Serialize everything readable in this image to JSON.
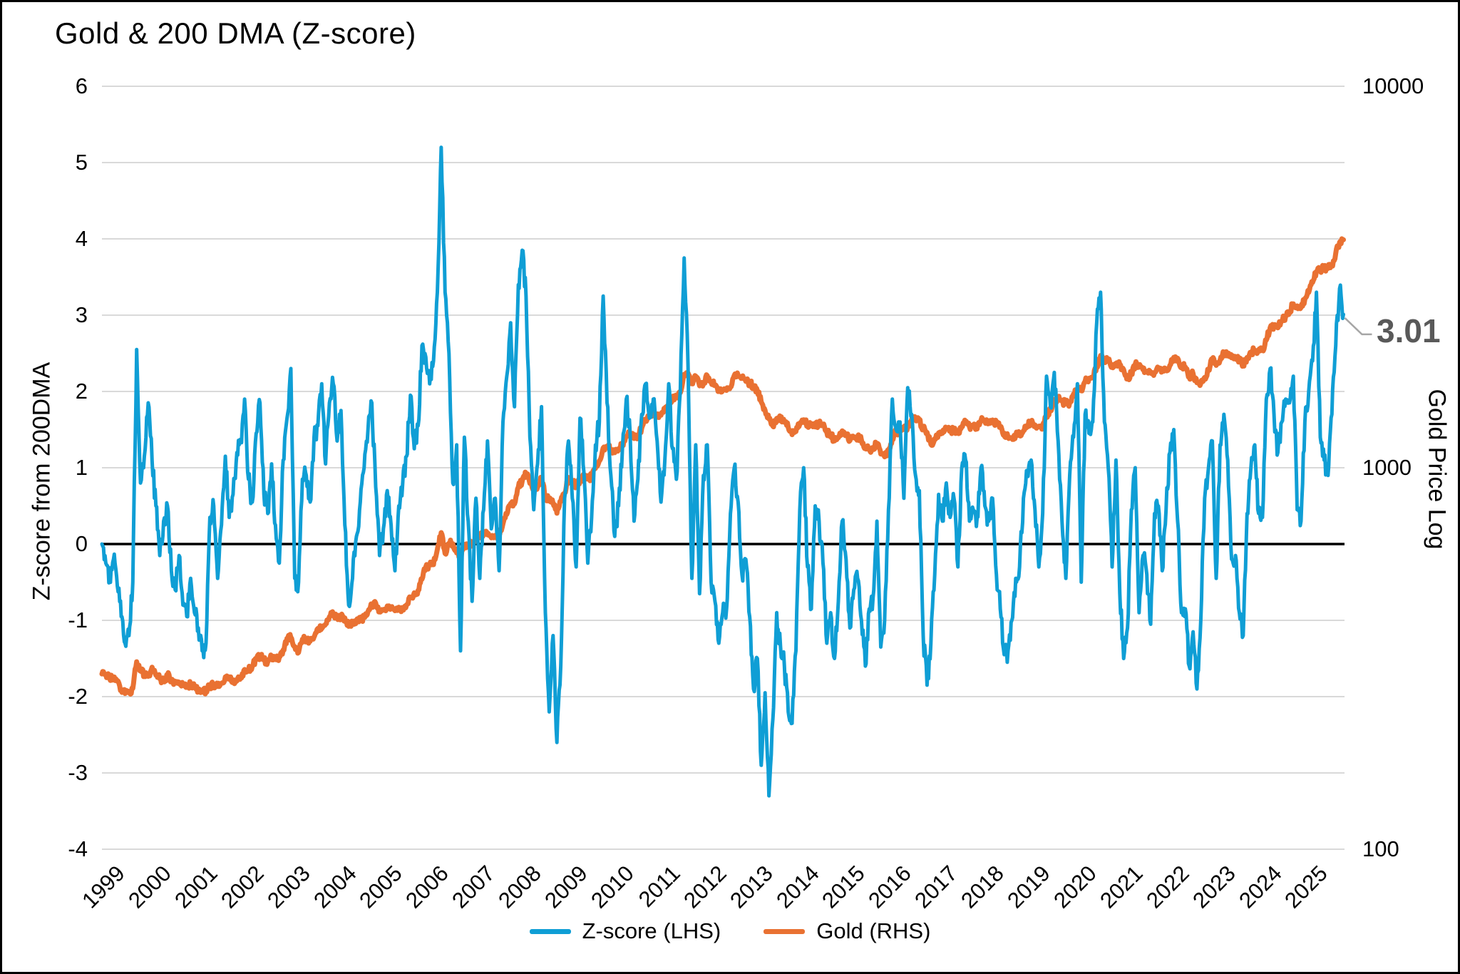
{
  "title": "Gold & 200 DMA (Z-score)",
  "left_axis": {
    "title": "Z-score from 200DMA",
    "ticks": [
      6,
      5,
      4,
      3,
      2,
      1,
      0,
      -1,
      -2,
      -3,
      -4
    ],
    "min": -4,
    "max": 6
  },
  "right_axis": {
    "title": "Gold Price Log",
    "ticks": [
      10000,
      1000,
      100
    ],
    "min": 100,
    "max": 10000,
    "scale": "log"
  },
  "x_axis": {
    "ticks": [
      1999,
      2000,
      2001,
      2002,
      2003,
      2004,
      2005,
      2006,
      2007,
      2008,
      2009,
      2010,
      2011,
      2012,
      2013,
      2014,
      2015,
      2016,
      2017,
      2018,
      2019,
      2020,
      2021,
      2022,
      2023,
      2024,
      2025
    ]
  },
  "annotation": {
    "label": "3.01",
    "value": 3.01,
    "color": "#595959"
  },
  "legend": [
    {
      "label": "Z-score (LHS)",
      "color": "#0F9ED5"
    },
    {
      "label": "Gold (RHS)",
      "color": "#E97132"
    }
  ],
  "colors": {
    "zscore_line": "#0F9ED5",
    "gold_line": "#E97132",
    "gridline": "#D9D9D9",
    "zero_line": "#000000",
    "leader_line": "#A6A6A6"
  },
  "chart_data": {
    "type": "line",
    "title": "Gold & 200 DMA (Z-score)",
    "xlabel": "",
    "ylabel": "Z-score from 200DMA",
    "y2label": "Gold Price Log",
    "ylim": [
      -4,
      6
    ],
    "y2lim": [
      100,
      10000
    ],
    "y2scale": "log",
    "grid": true,
    "legend_position": "bottom",
    "x_start_year": 1999,
    "x_end": "2025-11",
    "frequency": "monthly",
    "series": [
      {
        "name": "Z-score (LHS)",
        "axis": "left",
        "color": "#0F9ED5",
        "values": [
          0.0,
          -0.25,
          -0.45,
          -0.2,
          -0.55,
          -0.95,
          -1.3,
          -1.2,
          -0.5,
          2.55,
          0.8,
          1.15,
          1.85,
          1.1,
          0.5,
          -0.15,
          0.3,
          0.5,
          -0.35,
          -0.6,
          -0.15,
          -0.8,
          -0.95,
          -0.45,
          -0.9,
          -1.1,
          -1.4,
          -1.3,
          0.35,
          0.5,
          -0.45,
          0.25,
          1.15,
          0.35,
          0.65,
          1.2,
          1.35,
          1.9,
          0.85,
          0.55,
          1.45,
          1.85,
          0.65,
          0.4,
          1.05,
          0.25,
          -0.25,
          1.1,
          1.65,
          2.3,
          -0.45,
          -0.5,
          0.85,
          0.9,
          0.55,
          1.4,
          1.55,
          2.1,
          1.05,
          1.85,
          2.1,
          1.35,
          1.75,
          0.25,
          -0.8,
          -0.45,
          0.1,
          0.55,
          1.0,
          1.5,
          1.85,
          0.75,
          -0.15,
          0.2,
          0.7,
          0.25,
          -0.35,
          0.5,
          0.8,
          1.15,
          1.95,
          1.25,
          1.55,
          2.6,
          2.45,
          2.1,
          2.4,
          3.3,
          5.2,
          3.3,
          2.5,
          0.8,
          1.3,
          -1.4,
          1.4,
          0.3,
          -0.75,
          0.6,
          -0.45,
          0.45,
          1.35,
          0.2,
          0.6,
          -0.35,
          1.6,
          2.2,
          2.9,
          1.8,
          3.4,
          3.85,
          3.25,
          1.4,
          0.45,
          1.05,
          1.8,
          -0.9,
          -2.2,
          -1.2,
          -2.6,
          -1.6,
          0.6,
          1.35,
          0.6,
          -0.3,
          1.65,
          0.95,
          -0.25,
          0.35,
          1.3,
          1.6,
          3.25,
          1.85,
          0.9,
          0.1,
          0.5,
          1.25,
          1.9,
          1.45,
          0.3,
          0.85,
          1.7,
          2.1,
          1.65,
          1.9,
          1.35,
          0.55,
          1.1,
          2.1,
          1.25,
          0.85,
          2.0,
          3.75,
          2.35,
          -0.45,
          1.3,
          -0.65,
          0.9,
          1.3,
          -0.5,
          -0.75,
          -1.3,
          -0.9,
          -0.85,
          0.4,
          1.0,
          0.55,
          -0.4,
          -0.2,
          -0.95,
          -1.9,
          -1.5,
          -2.9,
          -1.95,
          -3.3,
          -2.3,
          -0.9,
          -1.35,
          -1.6,
          -2.2,
          -2.35,
          -1.4,
          0.45,
          1.0,
          -0.3,
          -0.85,
          0.5,
          0.3,
          -0.25,
          -1.3,
          -0.9,
          -1.5,
          -0.75,
          0.3,
          -0.2,
          -1.1,
          -0.6,
          -0.45,
          -1.0,
          -1.6,
          -0.85,
          -0.7,
          0.3,
          -1.35,
          -1.0,
          0.45,
          1.9,
          1.5,
          1.6,
          0.6,
          2.05,
          1.7,
          0.9,
          0.7,
          -1.2,
          -1.85,
          -1.3,
          -0.4,
          0.65,
          0.3,
          0.8,
          0.35,
          0.6,
          -0.3,
          1.0,
          1.1,
          0.3,
          0.45,
          0.35,
          1.0,
          0.5,
          0.3,
          0.6,
          -0.4,
          -0.85,
          -1.45,
          -1.4,
          -1.0,
          -0.45,
          -0.3,
          0.6,
          0.9,
          1.1,
          0.45,
          -0.3,
          0.4,
          2.2,
          1.8,
          2.25,
          1.35,
          0.3,
          -0.45,
          0.9,
          1.4,
          2.1,
          -0.5,
          1.7,
          1.45,
          1.6,
          2.9,
          3.3,
          1.6,
          1.0,
          -0.3,
          1.1,
          -0.65,
          -1.5,
          -1.1,
          0.45,
          1.0,
          -0.9,
          -0.15,
          -0.4,
          -1.05,
          0.4,
          0.5,
          -0.35,
          0.45,
          1.2,
          1.5,
          0.3,
          -0.9,
          -0.85,
          -1.6,
          -1.15,
          -1.9,
          -1.0,
          0.6,
          1.0,
          1.35,
          -0.45,
          1.3,
          1.7,
          1.1,
          -0.2,
          -0.15,
          -0.9,
          -1.2,
          0.4,
          1.0,
          1.3,
          0.4,
          0.35,
          1.9,
          2.3,
          1.7,
          1.2,
          1.6,
          1.9,
          1.85,
          2.2,
          0.45,
          0.3,
          1.6,
          2.0,
          2.4,
          3.3,
          1.4,
          1.1,
          0.9,
          1.7,
          2.6,
          3.35,
          3.01
        ]
      },
      {
        "name": "Gold (RHS)",
        "axis": "right",
        "color": "#E97132",
        "values": [
          288,
          287,
          280,
          283,
          277,
          262,
          256,
          257,
          264,
          310,
          293,
          288,
          284,
          300,
          286,
          280,
          275,
          286,
          278,
          274,
          274,
          270,
          266,
          272,
          266,
          262,
          258,
          260,
          268,
          270,
          267,
          272,
          283,
          283,
          276,
          276,
          282,
          296,
          294,
          302,
          314,
          321,
          313,
          310,
          319,
          317,
          319,
          333,
          357,
          359,
          340,
          328,
          355,
          356,
          351,
          360,
          379,
          379,
          389,
          407,
          414,
          405,
          406,
          404,
          384,
          392,
          398,
          400,
          405,
          420,
          439,
          442,
          424,
          423,
          434,
          429,
          422,
          431,
          424,
          437,
          456,
          470,
          477,
          510,
          550,
          555,
          557,
          611,
          676,
          596,
          634,
          632,
          598,
          586,
          627,
          629,
          631,
          665,
          655,
          679,
          667,
          655,
          665,
          665,
          713,
          755,
          806,
          804,
          890,
          922,
          968,
          910,
          889,
          889,
          940,
          839,
          829,
          807,
          760,
          816,
          858,
          943,
          924,
          890,
          929,
          946,
          934,
          949,
          996,
          1043,
          1127,
          1135,
          1118,
          1095,
          1113,
          1149,
          1205,
          1233,
          1193,
          1216,
          1271,
          1342,
          1370,
          1391,
          1356,
          1373,
          1424,
          1474,
          1511,
          1529,
          1573,
          1757,
          1772,
          1666,
          1739,
          1640,
          1656,
          1743,
          1674,
          1650,
          1586,
          1598,
          1595,
          1626,
          1745,
          1747,
          1722,
          1685,
          1671,
          1628,
          1593,
          1487,
          1414,
          1343,
          1286,
          1347,
          1348,
          1316,
          1276,
          1221,
          1244,
          1300,
          1336,
          1299,
          1288,
          1279,
          1311,
          1296,
          1238,
          1223,
          1176,
          1199,
          1250,
          1227,
          1178,
          1198,
          1199,
          1181,
          1128,
          1117,
          1125,
          1159,
          1086,
          1068,
          1097,
          1194,
          1246,
          1242,
          1260,
          1276,
          1337,
          1340,
          1327,
          1272,
          1238,
          1152,
          1192,
          1234,
          1231,
          1266,
          1246,
          1260,
          1236,
          1283,
          1314,
          1280,
          1282,
          1264,
          1331,
          1318,
          1325,
          1334,
          1303,
          1281,
          1232,
          1202,
          1198,
          1215,
          1220,
          1250,
          1292,
          1320,
          1295,
          1286,
          1287,
          1359,
          1413,
          1500,
          1511,
          1495,
          1471,
          1479,
          1561,
          1597,
          1591,
          1683,
          1716,
          1732,
          1843,
          1969,
          1921,
          1900,
          1863,
          1864,
          1867,
          1808,
          1718,
          1762,
          1867,
          1835,
          1807,
          1784,
          1776,
          1777,
          1820,
          1787,
          1797,
          1856,
          1948,
          1937,
          1848,
          1837,
          1736,
          1765,
          1671,
          1664,
          1725,
          1797,
          1923,
          1855,
          1912,
          1999,
          1992,
          1942,
          1951,
          1918,
          1871,
          1945,
          2007,
          2036,
          2034,
          2044,
          2160,
          2330,
          2351,
          2327,
          2426,
          2494,
          2568,
          2690,
          2657,
          2629,
          2770,
          2880,
          3060,
          3270,
          3300,
          3350,
          3330,
          3400,
          3650,
          3900,
          3960
        ]
      }
    ]
  }
}
